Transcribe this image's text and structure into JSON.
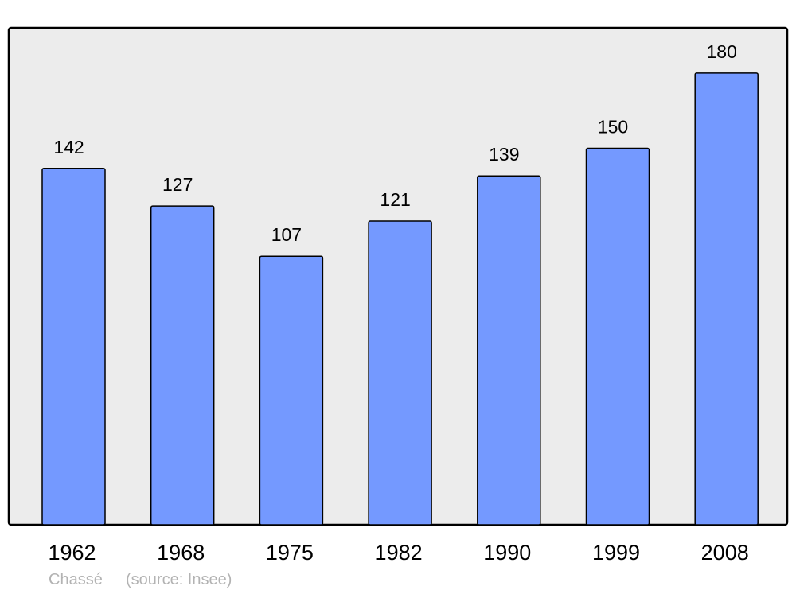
{
  "chart_data": {
    "type": "bar",
    "categories": [
      "1962",
      "1968",
      "1975",
      "1982",
      "1990",
      "1999",
      "2008"
    ],
    "values": [
      142,
      127,
      107,
      121,
      139,
      150,
      180
    ],
    "title": "",
    "xlabel": "",
    "ylabel": "",
    "ylim": [
      0,
      198
    ],
    "grid": false,
    "data_labels": true,
    "colors": {
      "bar": "#7499ff",
      "plot_background": "#ececec",
      "border": "#000000"
    }
  },
  "footer": {
    "place": "Chassé",
    "source": "(source: Insee)"
  }
}
